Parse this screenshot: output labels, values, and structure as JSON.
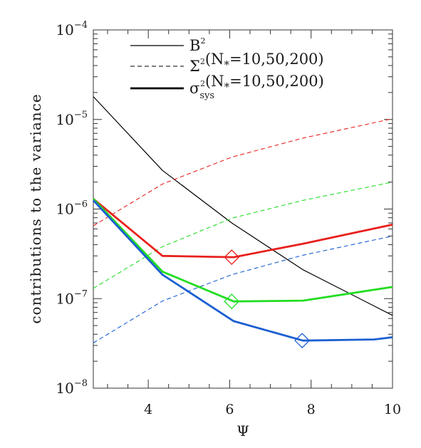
{
  "chart_data": {
    "type": "line",
    "title": "",
    "xlabel": "Ψ",
    "ylabel": "contributions to the variance",
    "xlim": [
      2.65,
      10
    ],
    "ylim": [
      1e-08,
      0.0001
    ],
    "y_scale": "log",
    "grid": false,
    "x_ticks": [
      4,
      6,
      8,
      10
    ],
    "y_tick_exponents": [
      -8,
      -7,
      -6,
      -5,
      -4
    ],
    "legend": {
      "placement": "top",
      "entries": [
        {
          "base": "B",
          "sup": "2",
          "sub": "",
          "args": "",
          "style": "thin-solid"
        },
        {
          "base": "Σ",
          "sup": "2",
          "sub": "",
          "args": "(N",
          "nsub": "*",
          "vals": "=10,50,200)",
          "style": "dashed"
        },
        {
          "base": "σ",
          "sup": "2",
          "sub": "sys",
          "args": "(N",
          "nsub": "*",
          "vals": "=10,50,200)",
          "style": "thick-solid"
        }
      ]
    },
    "series": [
      {
        "style": "thin-solid",
        "color": "#000000",
        "x": [
          2.65,
          4.35,
          6.05,
          7.8,
          10
        ],
        "y": [
          1.8e-05,
          2.7e-06,
          7e-07,
          2.1e-07,
          6.5e-08
        ]
      },
      {
        "style": "dashed",
        "color": "#e8201c",
        "x": [
          2.65,
          4.35,
          6.05,
          7.8,
          10
        ],
        "y": [
          6.5e-07,
          1.9e-06,
          3.8e-06,
          6.2e-06,
          1.02e-05
        ]
      },
      {
        "style": "dashed",
        "color": "#22dd22",
        "x": [
          2.65,
          4.35,
          6.05,
          7.8,
          10
        ],
        "y": [
          1.3e-07,
          3.8e-07,
          7.9e-07,
          1.25e-06,
          2e-06
        ]
      },
      {
        "style": "dashed",
        "color": "#1b5fd0",
        "x": [
          2.65,
          4.35,
          6.05,
          7.8,
          10
        ],
        "y": [
          3.2e-08,
          9.4e-08,
          1.85e-07,
          3.05e-07,
          5e-07
        ]
      },
      {
        "style": "thick-solid",
        "color": "#e8201c",
        "x": [
          2.65,
          4.35,
          6.1,
          7.8,
          10
        ],
        "y": [
          1.3e-06,
          3e-07,
          2.9e-07,
          4.1e-07,
          6.7e-07
        ]
      },
      {
        "style": "thick-solid",
        "color": "#22dd22",
        "x": [
          2.65,
          4.35,
          6.1,
          7.8,
          10
        ],
        "y": [
          1.3e-06,
          2e-07,
          9.3e-08,
          9.5e-08,
          1.35e-07
        ]
      },
      {
        "style": "thick-solid",
        "color": "#1b5fd0",
        "x": [
          2.65,
          4.35,
          6.1,
          7.8,
          9.55,
          10
        ],
        "y": [
          1.25e-06,
          1.85e-07,
          5.6e-08,
          3.4e-08,
          3.5e-08,
          3.7e-08
        ]
      }
    ],
    "minima_markers": [
      {
        "x": 6.05,
        "y": 2.9e-07,
        "color": "#e8201c"
      },
      {
        "x": 6.05,
        "y": 9.3e-08,
        "color": "#22dd22"
      },
      {
        "x": 7.78,
        "y": 3.4e-08,
        "color": "#1b5fd0"
      }
    ]
  }
}
